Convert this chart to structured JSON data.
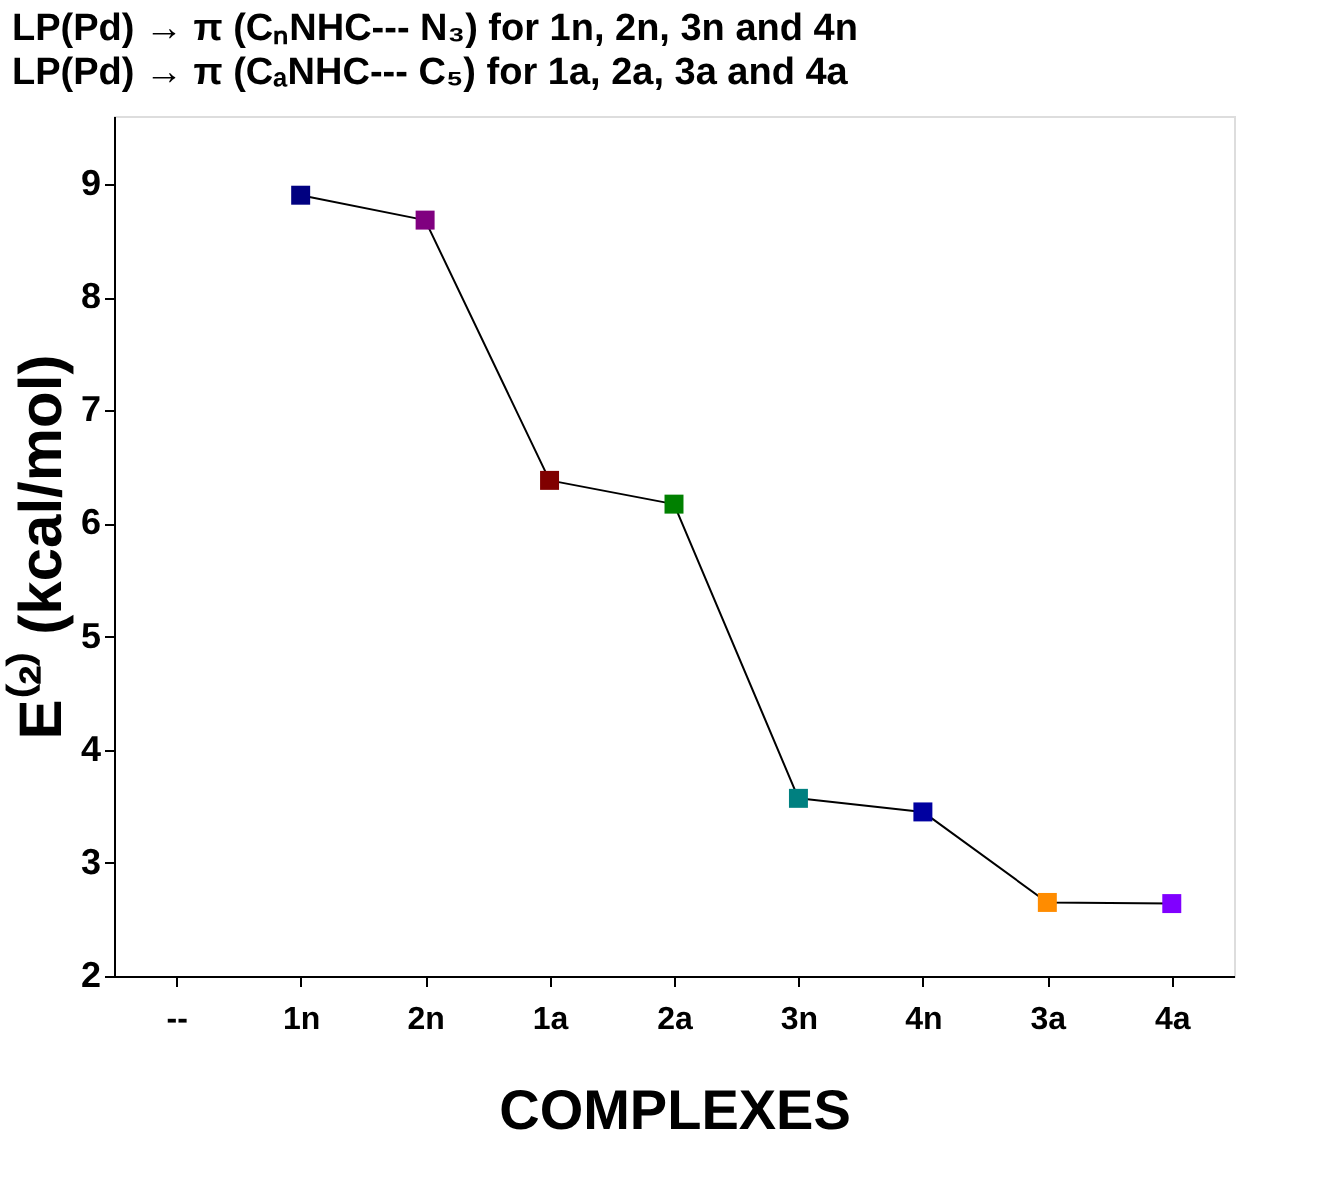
{
  "chart_data": {
    "type": "line",
    "title": "LP(Pd) → π (CₙNHC--- N₃) for 1n, 2n, 3n and 4n",
    "subtitle": "LP(Pd) → π (CₐNHC--- C₅) for 1a, 2a, 3a and 4a",
    "xlabel": "COMPLEXES",
    "ylabel": "E⁽²⁾ (kcal/mol)",
    "categories": [
      "--",
      "1n",
      "2n",
      "1a",
      "2a",
      "3n",
      "4n",
      "3a",
      "4a"
    ],
    "series": [
      {
        "color": "#000000",
        "values": [
          null,
          8.9,
          8.68,
          6.38,
          6.17,
          3.57,
          3.45,
          2.65,
          2.64
        ],
        "colors": [
          null,
          "#000080",
          "#800080",
          "#800000",
          "#008000",
          "#008080",
          "#0000a0",
          "#ff8c00",
          "#8000ff"
        ]
      }
    ],
    "ylim": [
      2,
      9.6
    ],
    "yticks": [
      2,
      3,
      4,
      5,
      6,
      7,
      8,
      9
    ],
    "grid": false,
    "legend": false,
    "marker": "square",
    "line_style": "solid"
  }
}
